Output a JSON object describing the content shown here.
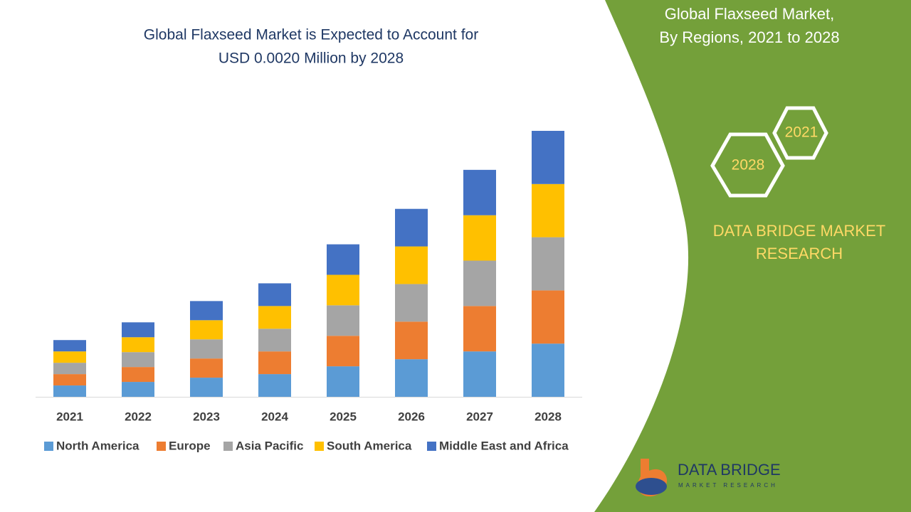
{
  "chart_data": {
    "type": "stacked_bar",
    "title": [
      "Global Flaxseed Market is Expected to Account for",
      "USD 0.0020 Million by 2028"
    ],
    "categories": [
      "2021",
      "2022",
      "2023",
      "2024",
      "2025",
      "2026",
      "2027",
      "2028"
    ],
    "series": [
      {
        "name": "North America",
        "color": "#5b9bd5",
        "values": [
          1.6,
          2.1,
          2.7,
          3.2,
          4.3,
          5.3,
          6.4,
          7.5
        ]
      },
      {
        "name": "Europe",
        "color": "#ed7d31",
        "values": [
          1.6,
          2.1,
          2.7,
          3.2,
          4.3,
          5.3,
          6.4,
          7.5
        ]
      },
      {
        "name": "Asia Pacific",
        "color": "#a5a5a5",
        "values": [
          1.6,
          2.1,
          2.7,
          3.2,
          4.3,
          5.3,
          6.4,
          7.5
        ]
      },
      {
        "name": "South America",
        "color": "#ffc000",
        "values": [
          1.6,
          2.1,
          2.7,
          3.2,
          4.3,
          5.3,
          6.4,
          7.5
        ]
      },
      {
        "name": "Middle East and Africa",
        "color": "#4472c4",
        "values": [
          1.6,
          2.1,
          2.7,
          3.2,
          4.3,
          5.3,
          6.4,
          7.5
        ]
      }
    ]
  },
  "panel": {
    "title": [
      "Global Flaxseed Market,",
      "By Regions, 2021 to 2028"
    ],
    "hexagons": [
      "2021",
      "2028"
    ],
    "brand": [
      "DATA BRIDGE MARKET",
      "RESEARCH"
    ],
    "logo": {
      "name": "DATA BRIDGE",
      "tagline": "MARKET RESEARCH"
    }
  }
}
